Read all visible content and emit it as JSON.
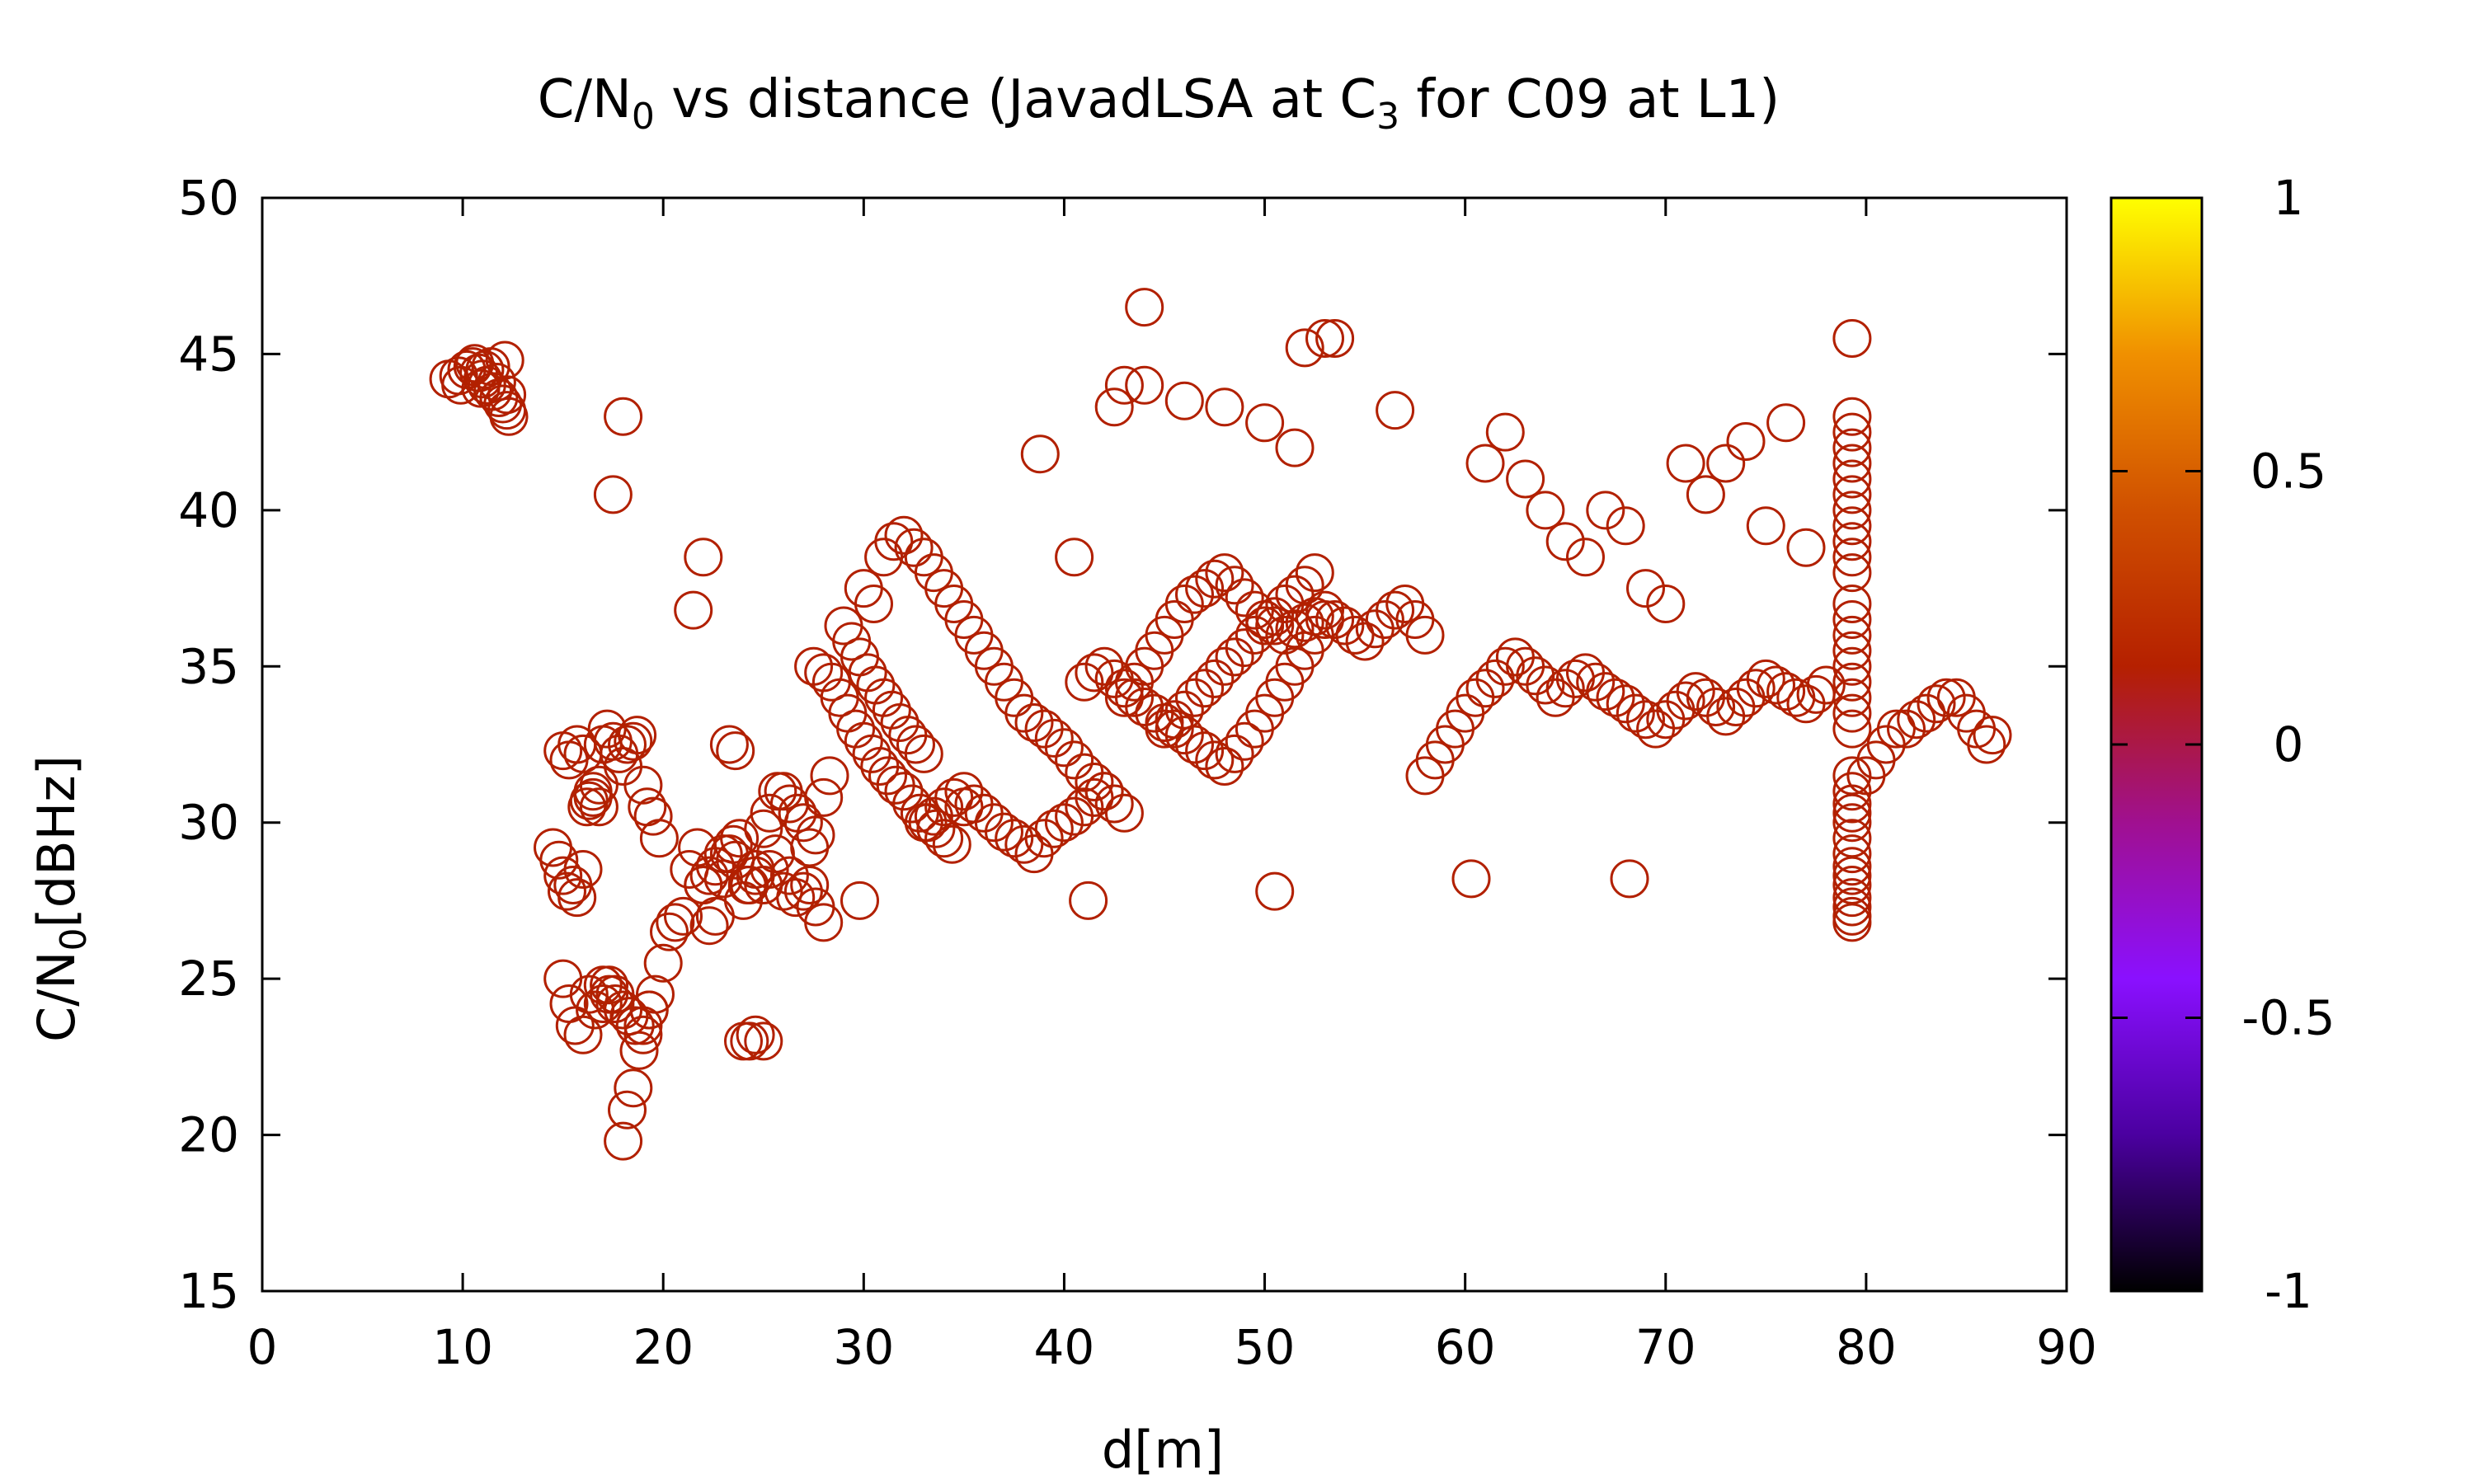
{
  "chart_data": {
    "type": "scatter",
    "title": {
      "prefix": "C/N",
      "sub1": "0",
      "middle": " vs distance (JavadLSA at C",
      "sub2": "3",
      "suffix": " for C09 at L1)"
    },
    "xlabel": "d[m]",
    "ylabel": {
      "prefix": "C/N",
      "sub": "0",
      "suffix": "[dBHz]"
    },
    "xlim": [
      0,
      90
    ],
    "ylim": [
      15,
      50
    ],
    "x_ticks": [
      "0",
      "10",
      "20",
      "30",
      "40",
      "50",
      "60",
      "70",
      "80",
      "90"
    ],
    "y_ticks": [
      "15",
      "20",
      "25",
      "30",
      "35",
      "40",
      "45",
      "50"
    ],
    "grid": false,
    "legend": "none",
    "marker": "open-circle",
    "marker_color": "#b22000",
    "colorbar": {
      "range": [
        -1,
        1
      ],
      "ticks": [
        "1",
        "0.5",
        "0",
        "-0.5",
        "-1"
      ],
      "stops": [
        "#000000",
        "#4b00a0",
        "#8a10ff",
        "#a01090",
        "#b52000",
        "#d05000",
        "#f09000",
        "#ffff00"
      ]
    },
    "series": [
      {
        "x": [
          9.3,
          9.8,
          10.2,
          10.5,
          10.8,
          11.0,
          11.2,
          11.5,
          11.8,
          12.0,
          12.2,
          12.3,
          10.6,
          11.4,
          12.1,
          9.9,
          10.9,
          11.7,
          12.2,
          11.1,
          15.0,
          15.3,
          15.7,
          16.0,
          16.2,
          16.5,
          16.8,
          17.0,
          17.2,
          17.5,
          17.8,
          18.0,
          18.2,
          18.5,
          18.7,
          19.0,
          19.2,
          19.5,
          19.8,
          14.5,
          14.8,
          15.0,
          15.2,
          15.5,
          15.7,
          16.0,
          16.3,
          16.5,
          16.8,
          17.0,
          17.3,
          17.6,
          18.0,
          18.3,
          18.6,
          19.0,
          19.3,
          19.6,
          20.0,
          20.3,
          20.6,
          21.0,
          21.3,
          21.7,
          22.0,
          22.3,
          22.6,
          23.0,
          23.3,
          23.6,
          24.0,
          24.3,
          24.6,
          25.0,
          25.3,
          25.6,
          26.0,
          26.3,
          26.6,
          27.0,
          27.3,
          27.6,
          28.0,
          18.0,
          18.2,
          18.5,
          18.8,
          19.0,
          19.3,
          15.0,
          15.3,
          15.6,
          16.0,
          16.3,
          16.6,
          17.0,
          17.3,
          17.6,
          22.0,
          22.3,
          22.6,
          23.0,
          23.3,
          23.6,
          24.0,
          24.3,
          24.6,
          25.0,
          23.5,
          23.8,
          24.2,
          24.6,
          25.0,
          25.3,
          25.7,
          26.0,
          26.3,
          26.7,
          27.0,
          27.3,
          27.6,
          28.0,
          28.3,
          27.5,
          28.0,
          28.4,
          28.8,
          29.2,
          29.6,
          30.0,
          30.4,
          30.8,
          31.2,
          31.6,
          32.0,
          32.4,
          32.8,
          33.2,
          33.6,
          34.0,
          34.4,
          29.0,
          29.4,
          29.8,
          30.2,
          30.6,
          31.0,
          31.4,
          31.8,
          32.2,
          32.6,
          33.0,
          30.0,
          30.5,
          31.0,
          31.5,
          32.0,
          32.5,
          33.0,
          33.5,
          34.0,
          34.5,
          35.0,
          35.5,
          36.0,
          36.5,
          37.0,
          37.5,
          38.0,
          38.5,
          39.0,
          39.5,
          40.0,
          40.5,
          41.0,
          41.5,
          42.0,
          42.5,
          43.0,
          33.0,
          33.5,
          34.0,
          34.5,
          35.0,
          35.5,
          36.0,
          36.5,
          37.0,
          37.5,
          38.0,
          38.5,
          39.0,
          39.5,
          40.0,
          40.5,
          41.0,
          41.5,
          42.0,
          41.0,
          41.5,
          42.0,
          42.5,
          43.0,
          43.5,
          44.0,
          44.5,
          45.0,
          45.5,
          46.0,
          46.5,
          47.0,
          47.5,
          48.0,
          48.5,
          49.0,
          49.5,
          50.0,
          50.5,
          51.0,
          51.5,
          52.0,
          52.5,
          53.0,
          43.0,
          43.5,
          44.0,
          44.5,
          45.0,
          45.5,
          46.0,
          46.5,
          47.0,
          47.5,
          48.0,
          48.5,
          49.0,
          49.5,
          50.0,
          50.5,
          51.0,
          51.5,
          52.0,
          52.5,
          53.0,
          53.5,
          54.0,
          54.5,
          55.0,
          55.5,
          56.0,
          56.5,
          57.0,
          57.5,
          58.0,
          45.0,
          45.5,
          46.0,
          46.5,
          47.0,
          47.5,
          48.0,
          48.5,
          49.0,
          49.5,
          50.0,
          50.5,
          51.0,
          51.5,
          52.0,
          52.5,
          44.0,
          46.0,
          48.0,
          50.0,
          52.0,
          53.0,
          42.5,
          43.0,
          51.5,
          56.5,
          58.0,
          58.5,
          59.0,
          59.5,
          60.0,
          60.5,
          61.0,
          61.5,
          62.0,
          62.5,
          63.0,
          63.5,
          64.0,
          64.5,
          65.0,
          65.5,
          66.0,
          66.5,
          67.0,
          67.5,
          68.0,
          68.5,
          69.0,
          69.5,
          70.0,
          70.5,
          71.0,
          71.5,
          72.0,
          72.5,
          73.0,
          73.5,
          74.0,
          74.5,
          75.0,
          75.5,
          76.0,
          76.5,
          77.0,
          77.5,
          78.0,
          61.0,
          62.0,
          63.0,
          64.0,
          65.0,
          66.0,
          67.0,
          68.0,
          69.0,
          70.0,
          71.0,
          72.0,
          73.0,
          74.0,
          75.0,
          76.0,
          77.0,
          79.3,
          79.3,
          79.3,
          79.3,
          79.3,
          79.3,
          79.3,
          79.3,
          79.3,
          79.3,
          79.3,
          79.3,
          79.3,
          79.3,
          79.3,
          79.3,
          79.3,
          79.3,
          79.3,
          79.3,
          79.3,
          79.3,
          79.3,
          79.3,
          79.3,
          79.3,
          79.3,
          79.3,
          79.3,
          79.3,
          79.3,
          79.3,
          79.3,
          79.3,
          79.3,
          80.0,
          80.5,
          81.0,
          81.5,
          82.0,
          82.5,
          83.0,
          83.5,
          84.0,
          84.5,
          85.0,
          85.5,
          86.0,
          86.3,
          21.5,
          22.0,
          17.5,
          18.0,
          60.3,
          68.2,
          50.5,
          41.2,
          29.8,
          44.0,
          53.5,
          38.8,
          35.0,
          40.5
        ],
        "y": [
          44.2,
          44.3,
          44.5,
          44.6,
          44.4,
          44.2,
          44.0,
          43.8,
          43.6,
          43.4,
          43.2,
          43.0,
          44.7,
          44.6,
          44.8,
          44.0,
          43.9,
          44.1,
          43.7,
          44.5,
          32.3,
          32.0,
          32.5,
          32.2,
          30.5,
          30.8,
          30.5,
          32.5,
          33.0,
          32.6,
          32.2,
          31.8,
          32.5,
          32.6,
          32.8,
          31.2,
          30.5,
          30.2,
          29.5,
          29.2,
          28.8,
          28.3,
          27.8,
          28.0,
          27.6,
          28.5,
          30.7,
          31.0,
          31.2,
          24.8,
          24.5,
          24.2,
          24.0,
          23.8,
          23.5,
          23.2,
          24.0,
          24.5,
          25.5,
          26.5,
          26.8,
          27.0,
          28.5,
          29.2,
          28.0,
          26.7,
          27.0,
          28.2,
          29.0,
          28.8,
          27.5,
          28.0,
          28.3,
          28.0,
          28.5,
          29.0,
          27.8,
          28.3,
          27.6,
          27.8,
          28.0,
          27.3,
          26.8,
          19.8,
          20.8,
          21.5,
          22.7,
          23.5,
          24.0,
          25.0,
          24.2,
          23.5,
          23.2,
          24.5,
          24.0,
          24.2,
          24.8,
          24.5,
          28.0,
          28.3,
          28.6,
          29.0,
          32.5,
          32.3,
          23.0,
          23.0,
          23.2,
          23.0,
          29.3,
          29.5,
          28.0,
          28.5,
          29.8,
          30.3,
          31.0,
          31.0,
          30.6,
          30.3,
          30.0,
          29.2,
          29.6,
          30.8,
          31.5,
          35.0,
          34.8,
          34.5,
          34.0,
          33.5,
          33.0,
          32.6,
          32.2,
          31.8,
          31.5,
          31.2,
          31.0,
          30.6,
          30.3,
          30.0,
          29.8,
          29.5,
          29.3,
          36.3,
          35.8,
          35.3,
          34.8,
          34.4,
          34.0,
          33.6,
          33.2,
          32.8,
          32.5,
          32.2,
          37.5,
          37.0,
          38.5,
          39.0,
          39.2,
          38.8,
          38.5,
          38.0,
          37.5,
          37.0,
          36.5,
          36.0,
          35.5,
          35.0,
          34.5,
          34.0,
          33.5,
          33.2,
          33.0,
          32.7,
          32.4,
          32.0,
          31.6,
          31.3,
          31.0,
          30.6,
          30.3,
          30.0,
          30.2,
          30.5,
          30.8,
          31.0,
          30.6,
          30.3,
          30.0,
          29.7,
          29.5,
          29.3,
          29.0,
          29.5,
          29.8,
          30.0,
          30.2,
          30.5,
          30.8,
          31.0,
          34.5,
          34.8,
          35.0,
          34.6,
          34.3,
          34.0,
          33.7,
          33.5,
          33.2,
          33.0,
          32.8,
          32.5,
          32.3,
          32.0,
          31.8,
          32.2,
          32.6,
          33.0,
          33.5,
          34.0,
          34.5,
          35.0,
          35.5,
          36.0,
          36.5,
          34.0,
          34.5,
          35.0,
          35.5,
          36.0,
          36.5,
          37.0,
          37.3,
          37.5,
          37.8,
          38.0,
          37.6,
          37.2,
          36.8,
          36.5,
          36.3,
          36.0,
          36.2,
          36.4,
          36.6,
          36.8,
          36.5,
          36.3,
          36.0,
          35.8,
          36.2,
          36.5,
          36.8,
          37.0,
          36.5,
          36.0,
          33.0,
          33.3,
          33.6,
          34.0,
          34.3,
          34.6,
          35.0,
          35.3,
          35.6,
          36.0,
          36.3,
          36.6,
          37.0,
          37.3,
          37.6,
          38.0,
          46.5,
          43.5,
          43.3,
          42.8,
          45.2,
          45.5,
          43.3,
          44.0,
          42.0,
          43.2,
          31.5,
          32.0,
          32.5,
          33.0,
          33.5,
          34.0,
          34.3,
          34.6,
          35.0,
          35.3,
          35.0,
          34.7,
          34.4,
          34.0,
          34.3,
          34.6,
          34.8,
          34.5,
          34.2,
          34.0,
          33.8,
          33.5,
          33.3,
          33.0,
          33.3,
          33.6,
          33.9,
          34.2,
          34.0,
          33.7,
          33.4,
          33.7,
          34.0,
          34.3,
          34.6,
          34.4,
          34.2,
          34.0,
          33.8,
          34.1,
          34.4,
          41.5,
          42.5,
          41.0,
          40.0,
          39.0,
          38.5,
          40.0,
          39.5,
          37.5,
          37.0,
          41.5,
          40.5,
          41.5,
          42.2,
          39.5,
          42.8,
          38.8,
          26.8,
          27.0,
          27.3,
          27.6,
          28.0,
          28.3,
          28.6,
          29.0,
          29.5,
          30.0,
          30.3,
          30.6,
          31.0,
          31.5,
          33.0,
          33.5,
          34.0,
          34.5,
          35.0,
          35.5,
          36.0,
          36.5,
          37.0,
          38.0,
          38.5,
          39.0,
          39.5,
          40.0,
          40.5,
          41.0,
          41.5,
          42.0,
          42.5,
          43.0,
          45.5,
          31.5,
          32.0,
          32.5,
          33.0,
          33.0,
          33.3,
          33.5,
          33.8,
          34.0,
          34.0,
          33.5,
          33.0,
          32.5,
          32.8,
          36.8,
          38.5,
          40.5,
          43.0,
          28.2,
          28.2,
          27.8,
          27.5,
          27.5,
          44.0,
          45.5,
          41.8,
          30.5,
          38.5
        ]
      }
    ]
  }
}
